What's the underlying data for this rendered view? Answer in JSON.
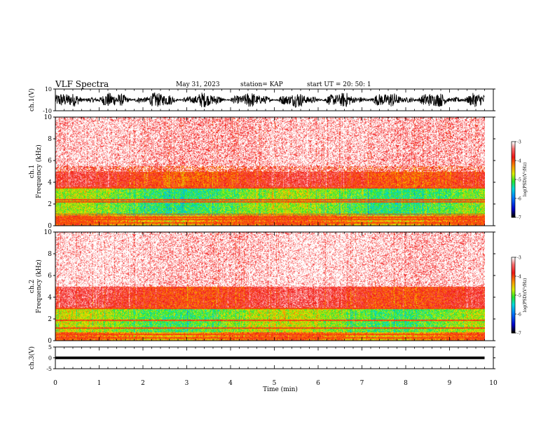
{
  "header": {
    "title": "VLF Spectra",
    "date": "May 31, 2023",
    "station": "station= KAP",
    "start": "start  UT  =   20: 50: 1"
  },
  "chart_data": [
    {
      "type": "line",
      "panel": "ch1-waveform",
      "ylabel": "ch.1(V)",
      "ylim": [
        -10,
        10
      ],
      "y_ticks": [
        "10",
        "-10"
      ],
      "xlim": [
        0,
        10
      ],
      "description_values": {
        "envelope_min": -7,
        "envelope_max": 7
      },
      "color": "#000000"
    },
    {
      "type": "heatmap",
      "panel": "ch1-spectrogram",
      "ylabel": "ch.1\nFrequency  (kHz)",
      "ylim": [
        0,
        10
      ],
      "y_ticks": [
        "0",
        "2",
        "4",
        "6",
        "8",
        "10"
      ],
      "xlim": [
        0,
        9.8
      ],
      "colorbar": {
        "label": "log(PSD)(V²/Hz)",
        "ticks": [
          "-3",
          "-4",
          "-5",
          "-6",
          "-7"
        ],
        "range": [
          -7,
          -3
        ]
      },
      "bands": [
        {
          "fmin": 0,
          "fmax": 1.0,
          "level": -4.2
        },
        {
          "fmin": 1.0,
          "fmax": 3.6,
          "level": -5.0
        },
        {
          "fmin": 3.6,
          "fmax": 5.5,
          "level": -3.8
        },
        {
          "fmin": 5.5,
          "fmax": 10,
          "level": -3.3
        }
      ],
      "lines_khz": [
        0.3,
        0.6,
        0.8,
        1.1,
        2.2,
        2.4,
        3.5
      ]
    },
    {
      "type": "heatmap",
      "panel": "ch2-spectrogram",
      "ylabel": "ch.2\nFrequency  (kHz)",
      "ylim": [
        0,
        10
      ],
      "y_ticks": [
        "0",
        "2",
        "4",
        "6",
        "8",
        "10"
      ],
      "xlim": [
        0,
        9.8
      ],
      "colorbar": {
        "label": "log(PSD)(V²/Hz)",
        "ticks": [
          "-3",
          "-4",
          "-5",
          "-6",
          "-7"
        ],
        "range": [
          -7,
          -3
        ]
      },
      "bands": [
        {
          "fmin": 0,
          "fmax": 0.8,
          "level": -4.2
        },
        {
          "fmin": 0.8,
          "fmax": 3.0,
          "level": -4.9
        },
        {
          "fmin": 3.0,
          "fmax": 5.0,
          "level": -3.7
        },
        {
          "fmin": 5.0,
          "fmax": 10,
          "level": -3.2
        }
      ],
      "lines_khz": [
        0.3,
        0.6,
        1.2,
        1.9,
        3.0
      ]
    },
    {
      "type": "line",
      "panel": "ch3-waveform",
      "ylabel": "ch.3(V)",
      "ylim": [
        -5,
        5
      ],
      "y_ticks": [
        "5",
        "0",
        "-5"
      ],
      "xlim": [
        0,
        10
      ],
      "description_values": {
        "envelope_min": -0.6,
        "envelope_max": 0.6
      },
      "color": "#000000"
    }
  ],
  "x_axis": {
    "label": "Time  (min)",
    "ticks": [
      "0",
      "1",
      "2",
      "3",
      "4",
      "5",
      "6",
      "7",
      "8",
      "9",
      "10"
    ],
    "range": [
      0,
      10
    ]
  }
}
